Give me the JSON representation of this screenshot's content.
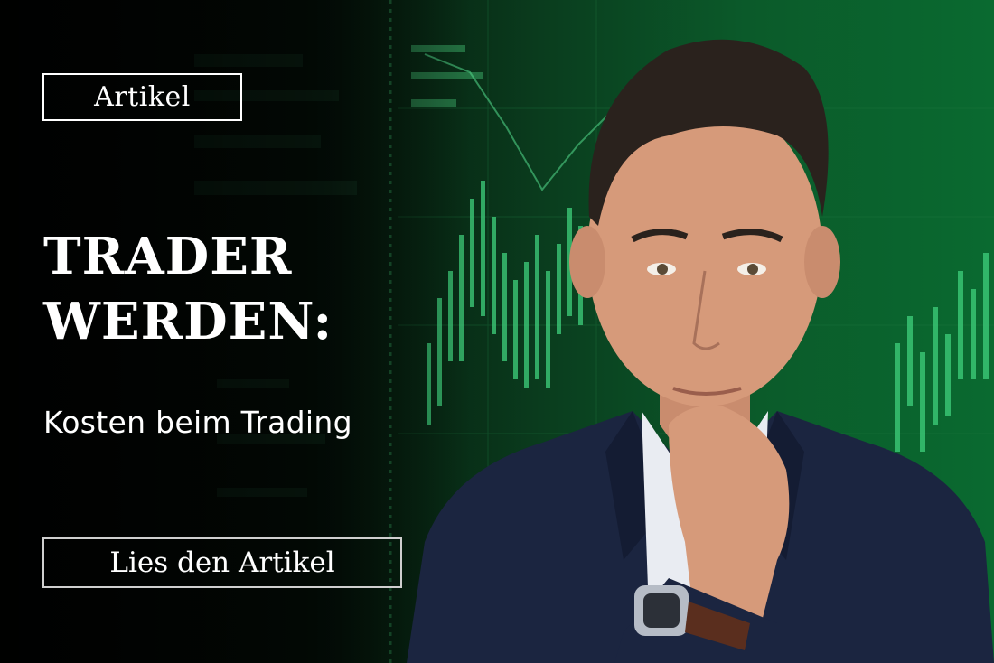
{
  "badge_label": "Artikel",
  "headline": {
    "line1": "TRADER",
    "line2": "WERDEN:"
  },
  "subline": "Kosten beim Trading",
  "cta_label": "Lies den Artikel",
  "colors": {
    "accent_green": "#0b6a32",
    "text": "#ffffff",
    "suit": "#1b2540"
  }
}
